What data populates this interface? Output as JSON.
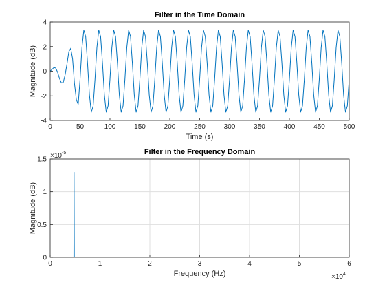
{
  "chart_data": [
    {
      "type": "line",
      "title": "Filter in the Time Domain",
      "x_label": "Time (s)",
      "y_label": "Magnitude (dB)",
      "xlim": [
        0,
        500
      ],
      "xticks": [
        0,
        50,
        100,
        150,
        200,
        250,
        300,
        350,
        400,
        450,
        500
      ],
      "ylim": [
        -4,
        4
      ],
      "yticks": [
        -4,
        -2,
        0,
        2,
        4
      ],
      "grid": false,
      "x": [
        0,
        3.125,
        6.25,
        9.375,
        12.5,
        15.625,
        18.75,
        21.875,
        25,
        28.125,
        31.25,
        34.375,
        37.5,
        40.625,
        43.75,
        46.875,
        50,
        53.125,
        56.25,
        59.375,
        62.5,
        65.625,
        68.75,
        71.875,
        75,
        78.125,
        81.25,
        84.375,
        87.5,
        90.625,
        93.75,
        96.875,
        100,
        103.125,
        106.25,
        109.375,
        112.5,
        115.625,
        118.75,
        121.875,
        125,
        128.125,
        131.25,
        134.375,
        137.5,
        140.625,
        143.75,
        146.875,
        150,
        153.125,
        156.25,
        159.375,
        162.5,
        165.625,
        168.75,
        171.875,
        175,
        178.125,
        181.25,
        184.375,
        187.5,
        190.625,
        193.75,
        196.875,
        200,
        203.125,
        206.25,
        209.375,
        212.5,
        215.625,
        218.75,
        221.875,
        225,
        228.125,
        231.25,
        234.375,
        237.5,
        240.625,
        243.75,
        246.875,
        250,
        253.125,
        256.25,
        259.375,
        262.5,
        265.625,
        268.75,
        271.875,
        275,
        278.125,
        281.25,
        284.375,
        287.5,
        290.625,
        293.75,
        296.875,
        300,
        303.125,
        306.25,
        309.375,
        312.5,
        315.625,
        318.75,
        321.875,
        325,
        328.125,
        331.25,
        334.375,
        337.5,
        340.625,
        343.75,
        346.875,
        350,
        353.125,
        356.25,
        359.375,
        362.5,
        365.625,
        368.75,
        371.875,
        375,
        378.125,
        381.25,
        384.375,
        387.5,
        390.625,
        393.75,
        396.875,
        400,
        403.125,
        406.25,
        409.375,
        412.5,
        415.625,
        418.75,
        421.875,
        425,
        428.125,
        431.25,
        434.375,
        437.5,
        440.625,
        443.75,
        446.875,
        450,
        453.125,
        456.25,
        459.375,
        462.5,
        465.625,
        468.75,
        471.875,
        475,
        478.125,
        481.25,
        484.375,
        487.5,
        490.625,
        493.75,
        496.875,
        500
      ],
      "series": [
        {
          "color": "#0072bd",
          "values": [
            0,
            0.15,
            0.3,
            0.25,
            -0.1,
            -0.6,
            -0.95,
            -0.9,
            -0.3,
            0.6,
            1.6,
            1.85,
            1.0,
            -1.0,
            -2.3,
            -2.7,
            -0.64,
            1.91,
            3.34,
            2.81,
            0.64,
            -1.91,
            -3.34,
            -2.81,
            -0.64,
            1.91,
            3.34,
            2.81,
            0.64,
            -1.91,
            -3.34,
            -2.81,
            -0.64,
            1.91,
            3.34,
            2.81,
            0.64,
            -1.91,
            -3.34,
            -2.81,
            -0.64,
            1.91,
            3.34,
            2.81,
            0.64,
            -1.91,
            -3.34,
            -2.81,
            -0.64,
            1.91,
            3.34,
            2.81,
            0.64,
            -1.91,
            -3.34,
            -2.81,
            -0.64,
            1.91,
            3.34,
            2.81,
            0.64,
            -1.91,
            -3.34,
            -2.81,
            -0.64,
            1.91,
            3.34,
            2.81,
            0.64,
            -1.91,
            -3.34,
            -2.81,
            -0.64,
            1.91,
            3.34,
            2.81,
            0.64,
            -1.91,
            -3.34,
            -2.81,
            -0.64,
            1.91,
            3.34,
            2.81,
            0.64,
            -1.91,
            -3.34,
            -2.81,
            -0.64,
            1.91,
            3.34,
            2.81,
            0.64,
            -1.91,
            -3.34,
            -2.81,
            -0.64,
            1.91,
            3.34,
            2.81,
            0.64,
            -1.91,
            -3.34,
            -2.81,
            -0.64,
            1.91,
            3.34,
            2.81,
            0.64,
            -1.91,
            -3.34,
            -2.81,
            -0.64,
            1.91,
            3.34,
            2.81,
            0.64,
            -1.91,
            -3.34,
            -2.81,
            -0.64,
            1.91,
            3.34,
            2.81,
            0.64,
            -1.91,
            -3.34,
            -2.81,
            -0.64,
            1.91,
            3.34,
            2.81,
            0.64,
            -1.91,
            -3.34,
            -2.81,
            -0.64,
            1.91,
            3.34,
            2.81,
            0.64,
            -1.91,
            -3.34,
            -2.81,
            -0.64,
            1.91,
            3.34,
            2.81,
            0.64,
            -1.91,
            -3.34,
            -2.81,
            -0.64,
            1.91,
            3.34,
            2.81,
            0.64,
            -1.91,
            -3.34,
            -2.81,
            -0.64
          ]
        }
      ]
    },
    {
      "type": "line",
      "title": "Filter in the Frequency Domain",
      "x_label": "Frequency (Hz)",
      "y_label": "Magnitude (dB)",
      "xlim": [
        0,
        60000
      ],
      "xticks": [
        0,
        {
          "value": 10000,
          "label": "1"
        },
        {
          "value": 20000,
          "label": "2"
        },
        {
          "value": 30000,
          "label": "3"
        },
        {
          "value": 40000,
          "label": "4"
        },
        {
          "value": 50000,
          "label": "5"
        },
        {
          "value": 60000,
          "label": "6"
        }
      ],
      "x_multiplier": {
        "base": "×10",
        "power": "4"
      },
      "ylim": [
        0,
        1.5e-05
      ],
      "yticks": [
        0,
        {
          "value": 5e-06,
          "label": "0.5"
        },
        {
          "value": 1e-05,
          "label": "1"
        },
        {
          "value": 1.5e-05,
          "label": "1.5"
        }
      ],
      "y_multiplier": {
        "base": "×10",
        "power": "-5"
      },
      "grid": true,
      "x": [
        0,
        4750,
        4800,
        4850,
        60000
      ],
      "series": [
        {
          "color": "#0072bd",
          "values": [
            0,
            0,
            1.3e-05,
            0,
            0
          ]
        }
      ]
    }
  ]
}
